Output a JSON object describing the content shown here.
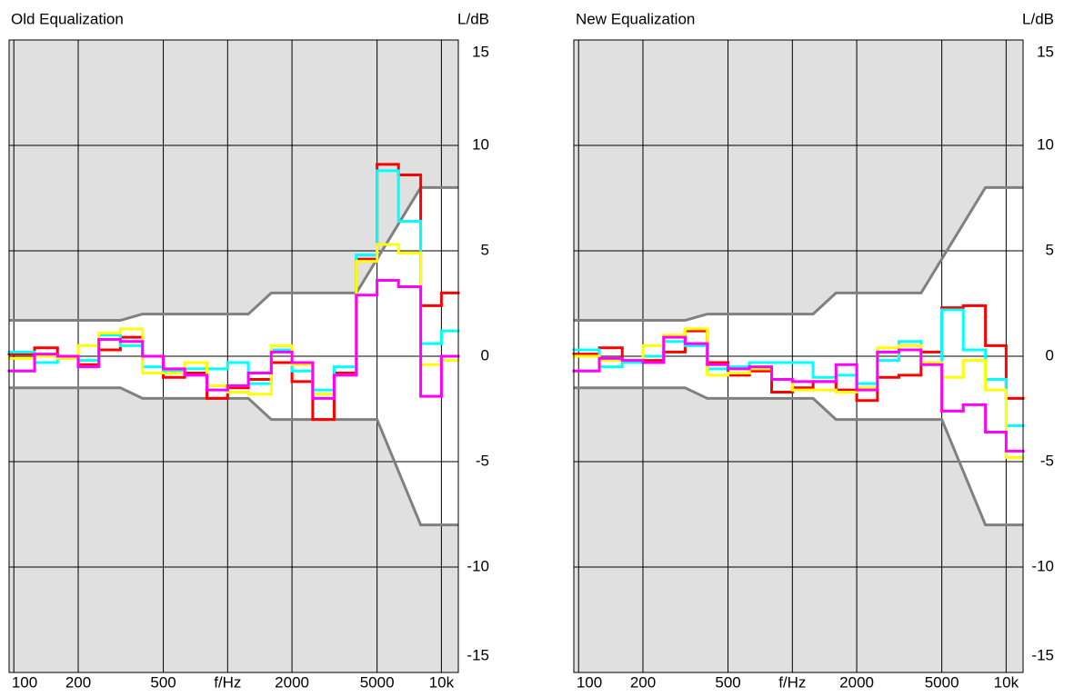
{
  "chart_data": [
    {
      "type": "step",
      "title": "Old Equalization",
      "x_label": "f/Hz",
      "y_label": "L/dB",
      "log_x": true,
      "grid": true,
      "background": "#e0e0e0",
      "band_color": "#ffffff",
      "xlim": [
        95,
        12000
      ],
      "xticks": [
        100,
        200,
        500,
        {
          "value": 1000,
          "label": "f/Hz"
        },
        2000,
        5000,
        {
          "value": 10000,
          "label": "10k"
        }
      ],
      "ylim": [
        -15,
        15
      ],
      "yticks": [
        15,
        10,
        5,
        0,
        -5,
        -10,
        -15
      ],
      "x": [
        100,
        125,
        160,
        200,
        250,
        315,
        400,
        500,
        630,
        800,
        1000,
        1250,
        1600,
        2000,
        2500,
        3150,
        4000,
        5000,
        6300,
        8000,
        10000
      ],
      "series": [
        {
          "color": "#ff0000",
          "values": [
            0.1,
            0.4,
            0.0,
            -0.4,
            0.3,
            0.9,
            0.0,
            -1.0,
            -0.8,
            -2.0,
            -1.5,
            -1.1,
            -0.3,
            -1.2,
            -3.0,
            -0.8,
            4.6,
            9.1,
            8.6,
            2.4,
            3.0
          ]
        },
        {
          "color": "#00ffff",
          "values": [
            0.2,
            -0.3,
            -0.1,
            -0.2,
            1.0,
            0.5,
            -0.5,
            -0.7,
            -0.6,
            -0.6,
            -0.3,
            -1.3,
            0.3,
            -0.7,
            -1.6,
            -0.5,
            4.8,
            8.8,
            6.4,
            0.6,
            1.2
          ]
        },
        {
          "color": "#ffff00",
          "values": [
            -0.1,
            0.0,
            -0.1,
            0.5,
            1.1,
            1.3,
            -0.8,
            -0.8,
            -0.3,
            -1.4,
            -1.7,
            -1.8,
            0.5,
            -0.4,
            -1.8,
            -0.9,
            4.5,
            5.3,
            4.9,
            -0.4,
            -0.2
          ]
        },
        {
          "color": "#ff00ff",
          "values": [
            -0.7,
            0.1,
            0.0,
            -0.5,
            0.8,
            0.7,
            0.0,
            -0.6,
            -0.9,
            -1.6,
            -1.4,
            -0.8,
            0.2,
            -0.3,
            -2.0,
            -0.9,
            2.9,
            3.6,
            3.3,
            -1.9,
            0.0
          ]
        }
      ],
      "tolerance": [
        {
          "color": "#808080",
          "x": [
            95,
            315,
            400,
            1250,
            1600,
            4000,
            8000,
            12000
          ],
          "values": [
            1.7,
            1.7,
            2,
            2,
            3,
            3,
            8,
            8
          ]
        },
        {
          "color": "#808080",
          "x": [
            95,
            315,
            400,
            1250,
            1600,
            5000,
            8000,
            12000
          ],
          "values": [
            -1.5,
            -1.5,
            -2,
            -2,
            -3,
            -3,
            -8,
            -8
          ]
        }
      ]
    },
    {
      "type": "step",
      "title": "New Equalization",
      "x_label": "f/Hz",
      "y_label": "L/dB",
      "log_x": true,
      "grid": true,
      "background": "#e0e0e0",
      "band_color": "#ffffff",
      "xlim": [
        95,
        12000
      ],
      "xticks": [
        100,
        200,
        500,
        {
          "value": 1000,
          "label": "f/Hz"
        },
        2000,
        5000,
        {
          "value": 10000,
          "label": "10k"
        }
      ],
      "ylim": [
        -15,
        15
      ],
      "yticks": [
        15,
        10,
        5,
        0,
        -5,
        -10,
        -15
      ],
      "x": [
        100,
        125,
        160,
        200,
        250,
        315,
        400,
        500,
        630,
        800,
        1000,
        1250,
        1600,
        2000,
        2500,
        3150,
        4000,
        5000,
        6300,
        8000,
        10000
      ],
      "series": [
        {
          "color": "#ff0000",
          "values": [
            0.1,
            0.4,
            -0.2,
            -0.2,
            0.2,
            1.2,
            -0.3,
            -0.9,
            -0.7,
            -1.7,
            -1.5,
            -1.2,
            -1.6,
            -2.1,
            -1.0,
            -0.9,
            0.2,
            2.3,
            2.4,
            0.5,
            -2.0
          ]
        },
        {
          "color": "#00ffff",
          "values": [
            0.3,
            -0.5,
            -0.3,
            0.0,
            0.7,
            0.5,
            -0.6,
            -0.5,
            -0.3,
            -0.3,
            -0.3,
            -1.0,
            -0.9,
            -1.3,
            -0.2,
            0.7,
            -0.3,
            2.2,
            0.3,
            -1.1,
            -3.3
          ]
        },
        {
          "color": "#ffff00",
          "values": [
            0.0,
            -0.2,
            -0.2,
            0.5,
            1.0,
            1.3,
            -0.9,
            -0.8,
            -0.6,
            -1.1,
            -1.6,
            -1.6,
            -1.7,
            -1.5,
            0.4,
            0.5,
            -0.3,
            -1.0,
            -0.2,
            -1.6,
            -4.8
          ]
        },
        {
          "color": "#ff00ff",
          "values": [
            -0.7,
            -0.1,
            -0.2,
            -0.3,
            0.9,
            0.6,
            -0.4,
            -0.6,
            -0.5,
            -1.1,
            -1.2,
            -1.2,
            -0.4,
            -1.6,
            0.2,
            0.3,
            -0.4,
            -2.6,
            -2.3,
            -3.6,
            -4.5
          ]
        }
      ],
      "tolerance": [
        {
          "color": "#808080",
          "x": [
            95,
            315,
            400,
            1250,
            1600,
            4000,
            8000,
            12000
          ],
          "values": [
            1.7,
            1.7,
            2,
            2,
            3,
            3,
            8,
            8
          ]
        },
        {
          "color": "#808080",
          "x": [
            95,
            315,
            400,
            1250,
            1600,
            5000,
            8000,
            12000
          ],
          "values": [
            -1.5,
            -1.5,
            -2,
            -2,
            -3,
            -3,
            -8,
            -8
          ]
        }
      ]
    }
  ]
}
